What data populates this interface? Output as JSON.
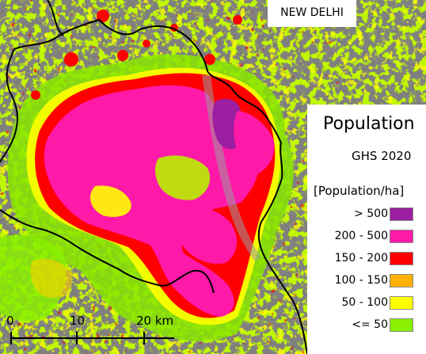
{
  "map": {
    "title": "NEW DELHI",
    "background_color": "#6f6f6f",
    "boundary_color": "#000000"
  },
  "legend": {
    "title": "Population",
    "source": "GHS 2020",
    "unit": "[Population/ha]",
    "classes": [
      {
        "label": "> 500",
        "color": "#9b1fa0"
      },
      {
        "label": "200 - 500",
        "color": "#ff1aa8"
      },
      {
        "label": "150 - 200",
        "color": "#ff0000"
      },
      {
        "label": "100 - 150",
        "color": "#ffb000"
      },
      {
        "label": "50 - 100",
        "color": "#ffff00"
      },
      {
        "label": "<= 50",
        "color": "#88f000"
      }
    ]
  },
  "scale_bar": {
    "labels": [
      "0",
      "10",
      "20 km"
    ]
  }
}
